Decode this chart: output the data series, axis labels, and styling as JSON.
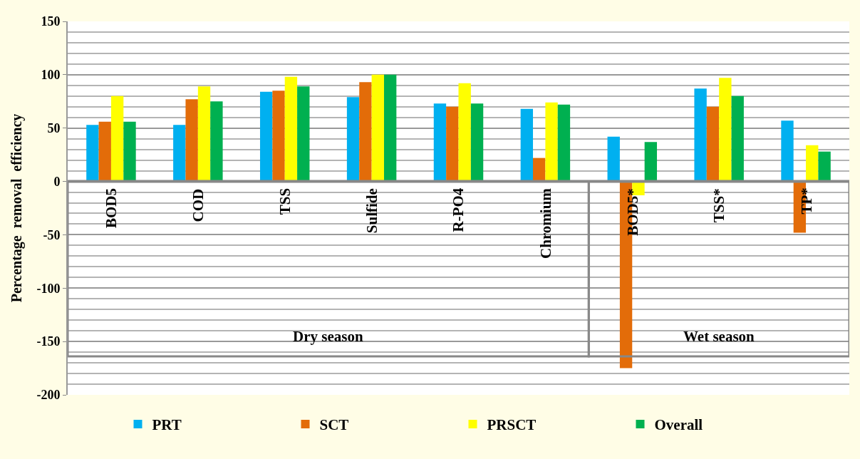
{
  "chart_data": {
    "type": "bar",
    "ylabel": "Percentage  removal  efficiency",
    "categories": [
      "BOD5",
      "COD",
      "TSS",
      "Sulfide",
      "R-PO4",
      "Chromium",
      "BOD5*",
      "TSS*",
      "TP*"
    ],
    "series": [
      {
        "name": "PRT",
        "color": "#00b0f0",
        "values": [
          53,
          53,
          84,
          79,
          73,
          68,
          42,
          87,
          57
        ]
      },
      {
        "name": "SCT",
        "color": "#e36c09",
        "values": [
          56,
          77,
          85,
          93,
          70,
          22,
          -175,
          70,
          -48
        ]
      },
      {
        "name": "PRSCT",
        "color": "#ffff00",
        "values": [
          80,
          89,
          98,
          100,
          92,
          74,
          -13,
          97,
          34
        ]
      },
      {
        "name": "Overall",
        "color": "#00b050",
        "values": [
          56,
          75,
          89,
          100,
          73,
          72,
          37,
          80,
          28
        ]
      }
    ],
    "annotations": [
      "Dry season",
      "Wet season"
    ],
    "ylim": [
      -200,
      150
    ],
    "yticks": [
      -200,
      {
        "value": -190,
        "label": null
      },
      {
        "value": -180,
        "label": null
      },
      {
        "value": -170,
        "label": null
      },
      {
        "value": -160,
        "label": null
      },
      -150,
      {
        "value": -140,
        "label": null
      },
      {
        "value": -130,
        "label": null
      },
      {
        "value": -120,
        "label": null
      },
      {
        "value": -110,
        "label": null
      },
      -100,
      {
        "value": -90,
        "label": null
      },
      {
        "value": -80,
        "label": null
      },
      {
        "value": -70,
        "label": null
      },
      {
        "value": -60,
        "label": null
      },
      -50,
      {
        "value": -40,
        "label": null
      },
      {
        "value": -30,
        "label": null
      },
      {
        "value": -20,
        "label": null
      },
      {
        "value": -10,
        "label": null
      },
      0,
      {
        "value": 10,
        "label": null
      },
      {
        "value": 20,
        "label": null
      },
      {
        "value": 30,
        "label": null
      },
      {
        "value": 40,
        "label": null
      },
      50,
      {
        "value": 60,
        "label": null
      },
      {
        "value": 70,
        "label": null
      },
      {
        "value": 80,
        "label": null
      },
      {
        "value": 90,
        "label": null
      },
      100,
      {
        "value": 110,
        "label": null
      },
      {
        "value": 120,
        "label": null
      },
      {
        "value": 130,
        "label": null
      },
      {
        "value": 140,
        "label": null
      },
      150
    ],
    "grid": "y",
    "legend": "bottom"
  }
}
